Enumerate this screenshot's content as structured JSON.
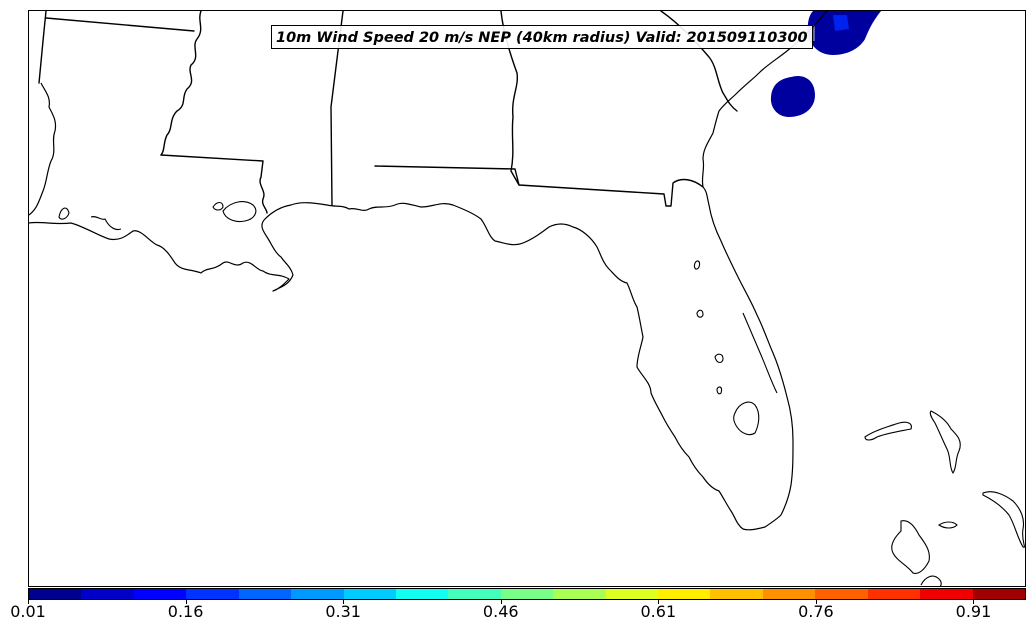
{
  "title": "10m Wind Speed 20 m/s NEP (40km radius) Valid: 201509110300",
  "colorbar": {
    "colormap": "jet",
    "colors": [
      "#00008f",
      "#0000c8",
      "#0000ff",
      "#0033ff",
      "#0066ff",
      "#0099ff",
      "#00ccff",
      "#11ffee",
      "#44ffbb",
      "#77ff88",
      "#aaff55",
      "#ddff22",
      "#ffee00",
      "#ffc000",
      "#ff9000",
      "#ff6000",
      "#ff3000",
      "#f00000",
      "#a00000"
    ],
    "tick_labels": [
      "0.01",
      "0.16",
      "0.31",
      "0.46",
      "0.61",
      "0.76",
      "0.91"
    ]
  },
  "map": {
    "region": "Gulf Coast / Florida",
    "probability_areas": [
      {
        "location": "Atlantic off South Carolina coast (top edge)",
        "color": "#00009f",
        "core_color": "#0022ee"
      },
      {
        "location": "Atlantic off Georgia coast",
        "color": "#00009f"
      }
    ]
  }
}
